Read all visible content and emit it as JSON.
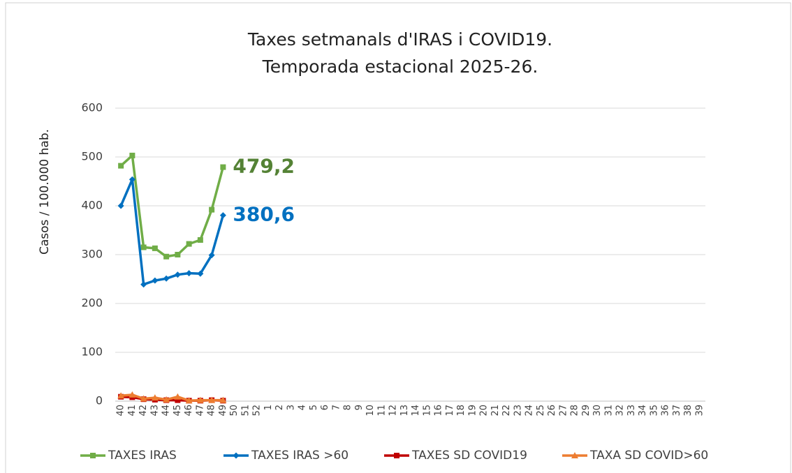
{
  "chart_data": {
    "type": "line",
    "title": "Taxes setmanals d'IRAS i COVID19.",
    "subtitle": "Temporada estacional 2025-26.",
    "y_label": "Casos / 100.000 hab.",
    "categories": [
      "40",
      "41",
      "42",
      "43",
      "44",
      "45",
      "46",
      "47",
      "48",
      "49",
      "50",
      "51",
      "52",
      "1",
      "2",
      "3",
      "4",
      "5",
      "6",
      "7",
      "8",
      "9",
      "10",
      "11",
      "12",
      "13",
      "14",
      "15",
      "16",
      "17",
      "18",
      "19",
      "20",
      "21",
      "22",
      "23",
      "24",
      "25",
      "26",
      "27",
      "28",
      "29",
      "30",
      "31",
      "32",
      "33",
      "34",
      "35",
      "36",
      "37",
      "38",
      "39"
    ],
    "series": [
      {
        "name": "TAXES IRAS",
        "color": "#70ad47",
        "label_color": "#548235",
        "marker": "square",
        "values": [
          482,
          503,
          315,
          313,
          296,
          300,
          322,
          330,
          392,
          479.2,
          null,
          null,
          null,
          null,
          null,
          null,
          null,
          null,
          null,
          null,
          null,
          null,
          null,
          null,
          null,
          null,
          null,
          null,
          null,
          null,
          null,
          null,
          null,
          null,
          null,
          null,
          null,
          null,
          null,
          null,
          null,
          null,
          null,
          null,
          null,
          null,
          null,
          null,
          null,
          null,
          null,
          null
        ],
        "value_labels": [
          null,
          null,
          null,
          null,
          null,
          null,
          null,
          null,
          null,
          "479,2",
          null,
          null,
          null,
          null,
          null,
          null,
          null,
          null,
          null,
          null,
          null,
          null,
          null,
          null,
          null,
          null,
          null,
          null,
          null,
          null,
          null,
          null,
          null,
          null,
          null,
          null,
          null,
          null,
          null,
          null,
          null,
          null,
          null,
          null,
          null,
          null,
          null,
          null,
          null,
          null,
          null,
          null
        ]
      },
      {
        "name": "TAXES  IRAS >60",
        "color": "#0070c0",
        "label_color": "#0070c0",
        "marker": "diamond",
        "values": [
          400,
          454,
          239,
          247,
          251,
          259,
          262,
          261,
          299,
          380.6,
          null,
          null,
          null,
          null,
          null,
          null,
          null,
          null,
          null,
          null,
          null,
          null,
          null,
          null,
          null,
          null,
          null,
          null,
          null,
          null,
          null,
          null,
          null,
          null,
          null,
          null,
          null,
          null,
          null,
          null,
          null,
          null,
          null,
          null,
          null,
          null,
          null,
          null,
          null,
          null,
          null,
          null
        ],
        "value_labels": [
          null,
          null,
          null,
          null,
          null,
          null,
          null,
          null,
          null,
          "380,6",
          null,
          null,
          null,
          null,
          null,
          null,
          null,
          null,
          null,
          null,
          null,
          null,
          null,
          null,
          null,
          null,
          null,
          null,
          null,
          null,
          null,
          null,
          null,
          null,
          null,
          null,
          null,
          null,
          null,
          null,
          null,
          null,
          null,
          null,
          null,
          null,
          null,
          null,
          null,
          null,
          null,
          null
        ]
      },
      {
        "name": "TAXES SD COVID19",
        "color": "#c00000",
        "marker": "square",
        "values": [
          9,
          8,
          4,
          3,
          2,
          2,
          1,
          1,
          2,
          1,
          null,
          null,
          null,
          null,
          null,
          null,
          null,
          null,
          null,
          null,
          null,
          null,
          null,
          null,
          null,
          null,
          null,
          null,
          null,
          null,
          null,
          null,
          null,
          null,
          null,
          null,
          null,
          null,
          null,
          null,
          null,
          null,
          null,
          null,
          null,
          null,
          null,
          null,
          null,
          null,
          null,
          null
        ]
      },
      {
        "name": "TAXA SD COVID>60",
        "color": "#ed7d31",
        "marker": "triangle",
        "values": [
          11,
          13,
          5,
          7,
          3,
          9,
          1,
          2,
          2,
          2,
          null,
          null,
          null,
          null,
          null,
          null,
          null,
          null,
          null,
          null,
          null,
          null,
          null,
          null,
          null,
          null,
          null,
          null,
          null,
          null,
          null,
          null,
          null,
          null,
          null,
          null,
          null,
          null,
          null,
          null,
          null,
          null,
          null,
          null,
          null,
          null,
          null,
          null,
          null,
          null,
          null,
          null
        ]
      }
    ],
    "ylim": [
      0,
      600
    ],
    "yticks": [
      0,
      100,
      200,
      300,
      400,
      500,
      600
    ],
    "grid": true,
    "legend": "bottom"
  }
}
